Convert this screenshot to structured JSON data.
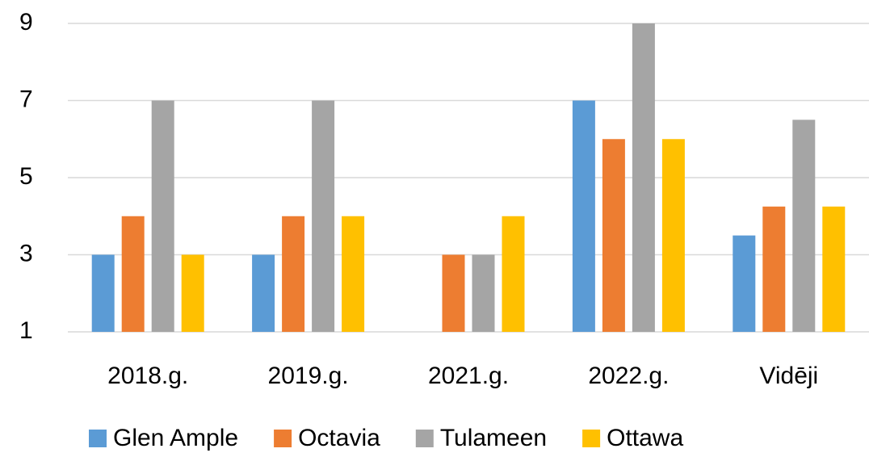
{
  "chart_data": {
    "type": "bar",
    "categories": [
      "2018.g.",
      "2019.g.",
      "2021.g.",
      "2022.g.",
      "Vidēji"
    ],
    "series": [
      {
        "name": "Glen Ample",
        "color": "#5b9bd5",
        "values": [
          3,
          3,
          null,
          7,
          3.5
        ]
      },
      {
        "name": "Octavia",
        "color": "#ed7d31",
        "values": [
          4,
          4,
          3,
          6,
          4.25
        ]
      },
      {
        "name": "Tulameen",
        "color": "#a5a5a5",
        "values": [
          7,
          7,
          3,
          9,
          6.5
        ]
      },
      {
        "name": "Ottawa",
        "color": "#ffc000",
        "values": [
          3,
          4,
          4,
          6,
          4.25
        ]
      }
    ],
    "ylim": [
      1,
      9
    ],
    "yticks": [
      1,
      3,
      5,
      7,
      9
    ],
    "grid": true,
    "legend": "bottom"
  }
}
